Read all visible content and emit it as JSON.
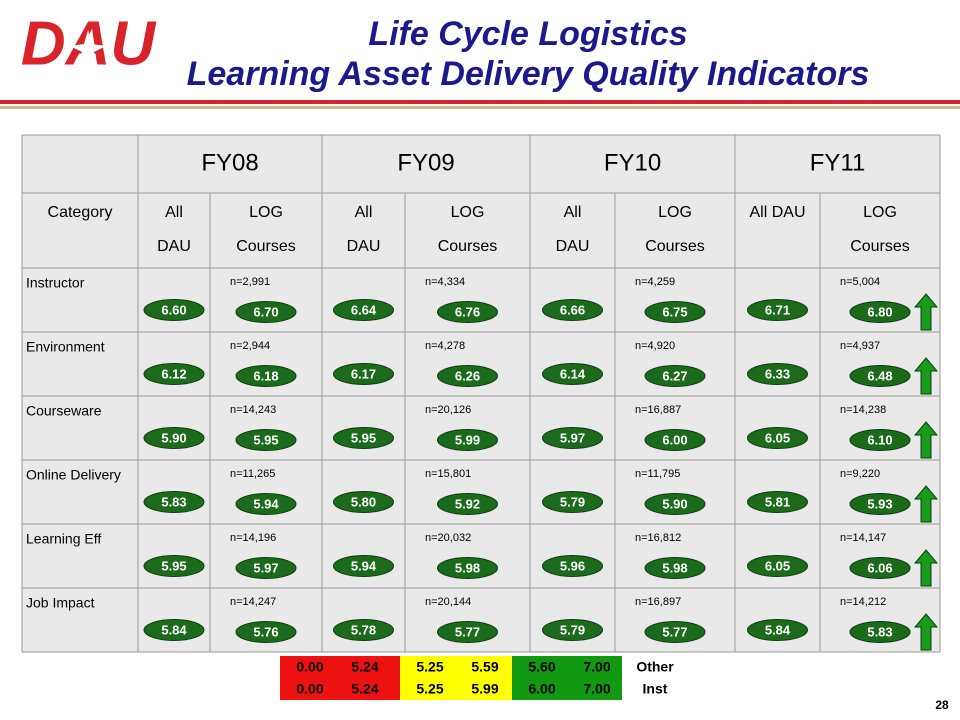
{
  "logo": "DAU",
  "title": [
    "Life Cycle Logistics",
    "Learning Asset Delivery Quality Indicators"
  ],
  "table": {
    "years": [
      "FY08",
      "FY09",
      "FY10",
      "FY11"
    ],
    "category_header": "Category",
    "subheaders": [
      {
        "all": [
          "All",
          "DAU"
        ],
        "log": [
          "LOG",
          "Courses"
        ]
      },
      {
        "all": [
          "All",
          "DAU"
        ],
        "log": [
          "LOG",
          "Courses"
        ]
      },
      {
        "all": [
          "All",
          "DAU"
        ],
        "log": [
          "LOG",
          "Courses"
        ]
      },
      {
        "all": [
          "All DAU"
        ],
        "log": [
          "LOG",
          "Courses"
        ]
      }
    ],
    "rows": [
      {
        "category": "Instructor",
        "cells": [
          {
            "all": "6.60",
            "log": "6.70",
            "n": "n=2,991"
          },
          {
            "all": "6.64",
            "log": "6.76",
            "n": "n=4,334"
          },
          {
            "all": "6.66",
            "log": "6.75",
            "n": "n=4,259"
          },
          {
            "all": "6.71",
            "log": "6.80",
            "n": "n=5,004"
          }
        ]
      },
      {
        "category": "Environment",
        "cells": [
          {
            "all": "6.12",
            "log": "6.18",
            "n": "n=2,944"
          },
          {
            "all": "6.17",
            "log": "6.26",
            "n": "n=4,278"
          },
          {
            "all": "6.14",
            "log": "6.27",
            "n": "n=4,920"
          },
          {
            "all": "6.33",
            "log": "6.48",
            "n": "n=4,937"
          }
        ]
      },
      {
        "category": "Courseware",
        "cells": [
          {
            "all": "5.90",
            "log": "5.95",
            "n": "n=14,243"
          },
          {
            "all": "5.95",
            "log": "5.99",
            "n": "n=20,126"
          },
          {
            "all": "5.97",
            "log": "6.00",
            "n": "n=16,887"
          },
          {
            "all": "6.05",
            "log": "6.10",
            "n": "n=14,238"
          }
        ]
      },
      {
        "category": "Online Delivery",
        "cells": [
          {
            "all": "5.83",
            "log": "5.94",
            "n": "n=11,265"
          },
          {
            "all": "5.80",
            "log": "5.92",
            "n": "n=15,801"
          },
          {
            "all": "5.79",
            "log": "5.90",
            "n": "n=11,795"
          },
          {
            "all": "5.81",
            "log": "5.93",
            "n": "n=9,220"
          }
        ]
      },
      {
        "category": "Learning Eff",
        "cells": [
          {
            "all": "5.95",
            "log": "5.97",
            "n": "n=14,196"
          },
          {
            "all": "5.94",
            "log": "5.98",
            "n": "n=20,032"
          },
          {
            "all": "5.96",
            "log": "5.98",
            "n": "n=16,812"
          },
          {
            "all": "6.05",
            "log": "6.06",
            "n": "n=14,147"
          }
        ]
      },
      {
        "category": "Job Impact",
        "cells": [
          {
            "all": "5.84",
            "log": "5.76",
            "n": "n=14,247"
          },
          {
            "all": "5.78",
            "log": "5.77",
            "n": "n=20,144"
          },
          {
            "all": "5.79",
            "log": "5.77",
            "n": "n=16,897"
          },
          {
            "all": "5.84",
            "log": "5.83",
            "n": "n=14,212"
          }
        ]
      }
    ]
  },
  "legend": {
    "rows": [
      {
        "ranges": [
          "0.00",
          "5.24",
          "5.25",
          "5.59",
          "5.60",
          "7.00"
        ],
        "label": "Other"
      },
      {
        "ranges": [
          "0.00",
          "5.24",
          "5.25",
          "5.99",
          "6.00",
          "7.00"
        ],
        "label": "Inst"
      }
    ]
  },
  "page_number": "28"
}
